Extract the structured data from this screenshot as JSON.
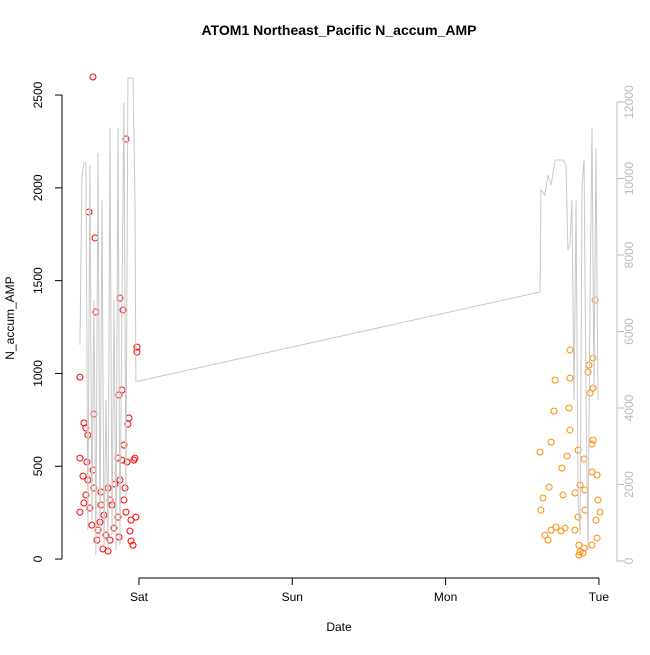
{
  "chart_data": {
    "type": "scatter",
    "title": "ATOM1 Northeast_Pacific N_accum_AMP",
    "xlabel": "Date",
    "ylabel": "N_accum_AMP",
    "xlim": [
      -0.502,
      3.118
    ],
    "xticks": [
      {
        "value": 0,
        "label": "Sat"
      },
      {
        "value": 1,
        "label": "Sun"
      },
      {
        "value": 2,
        "label": "Mon"
      },
      {
        "value": 3,
        "label": "Tue"
      }
    ],
    "ylim": [
      -102,
      2678
    ],
    "yticks": [
      0,
      500,
      1000,
      1500,
      2000,
      2500
    ],
    "y2lim": [
      -444,
      13046
    ],
    "y2ticks": [
      0,
      2000,
      4000,
      6000,
      8000,
      10000,
      12000
    ],
    "y2color": "#bbbbbb",
    "series": [
      {
        "type": "scatter",
        "color": "#ff0000",
        "x": [
          -0.385,
          -0.3,
          -0.326,
          -0.287,
          -0.281,
          -0.085,
          -0.124,
          -0.104,
          -0.013,
          -0.013,
          -0.111,
          -0.13,
          -0.359,
          -0.346,
          -0.333,
          -0.339,
          -0.385,
          -0.365,
          -0.294,
          -0.065,
          -0.072,
          -0.098,
          -0.111,
          -0.078,
          -0.137,
          -0.033,
          -0.026,
          -0.3,
          -0.333,
          -0.294,
          -0.346,
          -0.359,
          -0.385,
          -0.32,
          -0.248,
          -0.202,
          -0.157,
          -0.124,
          -0.091,
          -0.176,
          -0.228,
          -0.254,
          -0.267,
          -0.215,
          -0.189,
          -0.163,
          -0.13,
          -0.085,
          -0.059,
          -0.039,
          -0.052,
          -0.235,
          -0.202,
          -0.274,
          -0.307,
          -0.137,
          -0.098,
          -0.052,
          -0.02,
          -0.189,
          -0.248
        ],
        "values": [
          980,
          2597,
          1870,
          1730,
          1331,
          2263,
          1406,
          1342,
          1115,
          1142,
          911,
          884,
          733,
          706,
          668,
          523,
          544,
          447,
          781,
          760,
          727,
          614,
          533,
          523,
          544,
          533,
          544,
          480,
          426,
          383,
          345,
          302,
          253,
          275,
          361,
          383,
          404,
          426,
          383,
          291,
          237,
          199,
          156,
          129,
          102,
          167,
          119,
          253,
          151,
          75,
          97,
          54,
          43,
          102,
          183,
          226,
          318,
          210,
          226,
          318,
          291
        ]
      },
      {
        "type": "scatter",
        "color": "#ff8c00",
        "x": [
          2.975,
          2.811,
          2.962,
          2.935,
          2.929,
          2.714,
          2.811,
          2.942,
          2.962,
          2.707,
          2.805,
          2.811,
          2.962,
          2.955,
          2.688,
          2.864,
          2.616,
          2.792,
          2.903,
          2.759,
          2.955,
          2.988,
          2.675,
          2.877,
          2.909,
          2.635,
          2.844,
          2.766,
          2.994,
          2.622,
          2.909,
          2.864,
          2.72,
          2.779,
          2.648,
          2.668,
          2.844,
          2.87,
          2.903,
          2.877,
          2.87,
          2.896,
          2.981,
          3.007,
          2.988,
          2.955,
          2.753,
          2.688
        ],
        "values": [
          1395,
          1126,
          1083,
          1045,
          1007,
          964,
          975,
          894,
          921,
          797,
          814,
          695,
          641,
          620,
          630,
          587,
          576,
          555,
          539,
          490,
          469,
          453,
          388,
          399,
          372,
          329,
          356,
          345,
          318,
          264,
          264,
          226,
          172,
          167,
          129,
          102,
          156,
          75,
          59,
          38,
          22,
          32,
          210,
          253,
          113,
          75,
          151,
          156
        ]
      },
      {
        "type": "line",
        "axis": "y2",
        "color": "#c8c8c8",
        "x": [
          -0.385,
          -0.372,
          -0.359,
          -0.346,
          -0.333,
          -0.32,
          -0.307,
          -0.294,
          -0.281,
          -0.267,
          -0.254,
          -0.241,
          -0.228,
          -0.215,
          -0.202,
          -0.189,
          -0.176,
          -0.163,
          -0.15,
          -0.137,
          -0.124,
          -0.111,
          -0.098,
          -0.085,
          -0.072,
          -0.039,
          -0.026,
          -0.02,
          0,
          2.616,
          2.622,
          2.648,
          2.668,
          2.688,
          2.714,
          2.766,
          2.785,
          2.798,
          2.811,
          2.824,
          2.838,
          2.851,
          2.864,
          2.877,
          2.89,
          2.903,
          2.916,
          2.929,
          2.942,
          2.955,
          2.968,
          2.981,
          2.994
        ],
        "values": [
          5647,
          10092,
          10405,
          10405,
          810,
          10353,
          1072,
          6824,
          157,
          10667,
          549,
          9438,
          340,
          4209,
          288,
          11320,
          680,
          6824,
          288,
          11320,
          418,
          6824,
          11974,
          1595,
          12627,
          12627,
          9438,
          4706,
          4706,
          7033,
          9699,
          9569,
          10092,
          9830,
          10484,
          10484,
          10353,
          8131,
          8261,
          9438,
          4209,
          9438,
          1595,
          680,
          9830,
          10484,
          4209,
          288,
          6824,
          11320,
          4471,
          10797,
          4209
        ]
      }
    ]
  }
}
